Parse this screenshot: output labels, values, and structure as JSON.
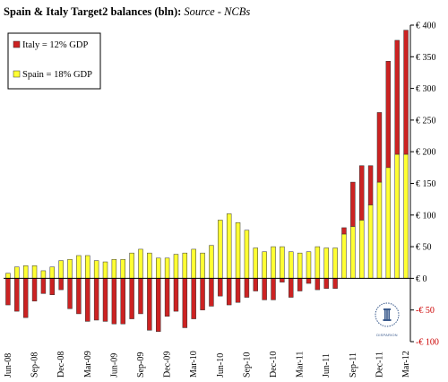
{
  "title": {
    "main": "Spain & Italy Target2 balances (bln):",
    "source": "Source - NCBs"
  },
  "colors": {
    "italy": "#cc2222",
    "spain": "#ffff33",
    "bar_stroke": "#333333",
    "negative_label": "#cc0000"
  },
  "logo": {
    "icon": "greek-column-seal-icon",
    "caption": "DISPARION"
  },
  "chart_data": {
    "type": "bar",
    "stacked": true,
    "categories": [
      "Jun-08",
      "Jul-08",
      "Aug-08",
      "Sep-08",
      "Oct-08",
      "Nov-08",
      "Dec-08",
      "Jan-09",
      "Feb-09",
      "Mar-09",
      "Apr-09",
      "May-09",
      "Jun-09",
      "Jul-09",
      "Aug-09",
      "Sep-09",
      "Oct-09",
      "Nov-09",
      "Dec-09",
      "Jan-10",
      "Feb-10",
      "Mar-10",
      "Apr-10",
      "May-10",
      "Jun-10",
      "Jul-10",
      "Aug-10",
      "Sep-10",
      "Oct-10",
      "Nov-10",
      "Dec-10",
      "Jan-11",
      "Feb-11",
      "Mar-11",
      "Apr-11",
      "May-11",
      "Jun-11",
      "Jul-11",
      "Aug-11",
      "Sep-11",
      "Oct-11",
      "Nov-11",
      "Dec-11",
      "Jan-12",
      "Feb-12",
      "Mar-12"
    ],
    "x_tick_labels": [
      "Jun-08",
      "Sep-08",
      "Dec-08",
      "Mar-09",
      "Jun-09",
      "Sep-09",
      "Dec-09",
      "Mar-10",
      "Jun-10",
      "Sep-10",
      "Dec-10",
      "Mar-11",
      "Jun-11",
      "Sep-11",
      "Dec-11",
      "Mar-12"
    ],
    "series": [
      {
        "name": "Spain = 18% GDP",
        "values": [
          8,
          18,
          20,
          20,
          12,
          18,
          28,
          30,
          36,
          36,
          28,
          26,
          30,
          30,
          40,
          46,
          40,
          32,
          32,
          38,
          40,
          46,
          40,
          52,
          92,
          102,
          88,
          76,
          48,
          42,
          50,
          50,
          42,
          40,
          42,
          50,
          48,
          48,
          70,
          82,
          92,
          116,
          152,
          175,
          196,
          196
        ]
      },
      {
        "name": "Italy = 12% GDP",
        "values": [
          -42,
          -52,
          -62,
          -36,
          -24,
          -26,
          -18,
          -48,
          -56,
          -68,
          -66,
          -68,
          -72,
          -72,
          -64,
          -56,
          -82,
          -84,
          -60,
          -52,
          -78,
          -64,
          -50,
          -44,
          -28,
          -42,
          -38,
          -30,
          -20,
          -34,
          -34,
          -6,
          -30,
          -20,
          -8,
          -18,
          -16,
          -16,
          10,
          70,
          86,
          62,
          110,
          168,
          180,
          196
        ]
      }
    ],
    "ylim": [
      -100,
      400
    ],
    "y_ticks": [
      -100,
      -50,
      0,
      50,
      100,
      150,
      200,
      250,
      300,
      350,
      400
    ],
    "y_tick_labels": [
      "-€ 100",
      "-€ 50",
      "€ 0",
      "€ 50",
      "€ 100",
      "€ 150",
      "€ 200",
      "€ 250",
      "€ 300",
      "€ 350",
      "€ 400"
    ],
    "legend": [
      "Italy = 12% GDP",
      "Spain = 18% GDP"
    ],
    "legend_position": "top-left",
    "grid": false,
    "xlabel": "",
    "ylabel": ""
  }
}
